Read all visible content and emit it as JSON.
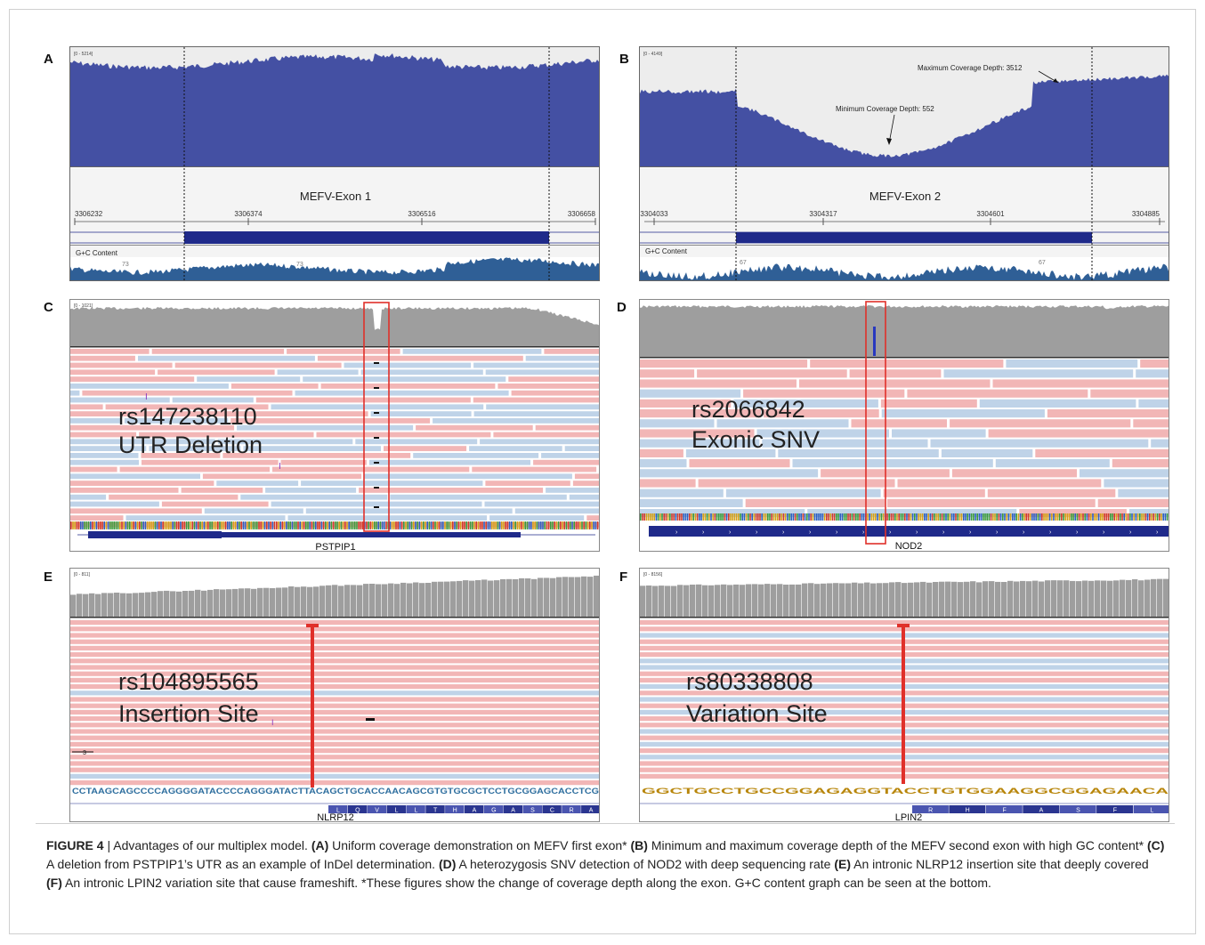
{
  "panels": {
    "A": {
      "letter": "A",
      "scale": "[0 - 5214]",
      "exon": "MEFV-Exon 1",
      "ticks": [
        "3306232",
        "3306374",
        "3306516",
        "3306658"
      ],
      "gc_label": "G+C Content",
      "gc_values": [
        "73",
        "73"
      ]
    },
    "B": {
      "letter": "B",
      "scale": "[0 - 4149]",
      "exon": "MEFV-Exon 2",
      "ticks": [
        "3304033",
        "3304317",
        "3304601",
        "3304885"
      ],
      "gc_label": "G+C Content",
      "gc_values": [
        "67",
        "67"
      ],
      "max_annotation": "Maximum Coverage Depth: 3512",
      "min_annotation": "Minimum Coverage Depth: 552"
    },
    "C": {
      "letter": "C",
      "scale": "[0 - 1021]",
      "variant": "rs147238110",
      "variant_type": "UTR Deletion",
      "gene": "PSTPIP1"
    },
    "D": {
      "letter": "D",
      "variant": "rs2066842",
      "variant_type": "Exonic SNV",
      "gene": "NOD2"
    },
    "E": {
      "letter": "E",
      "scale": "[0 - 811]",
      "variant": "rs104895565",
      "variant_type": "Insertion Site",
      "gene": "NLRP12",
      "sequence": "CCTAAGCAGCCCCAGGGGATACCCCAGGGATACTTACAGCTGCACCAACAGCGTGTGCGCTCCTGCGGAGCACCTCG",
      "amino_acids": [
        "L",
        "Q",
        "V",
        "L",
        "L",
        "T",
        "H",
        "A",
        "G",
        "A",
        "S",
        "C",
        "R",
        "A"
      ],
      "marker": "3"
    },
    "F": {
      "letter": "F",
      "scale": "[0 - 8156]",
      "variant": "rs80338808",
      "variant_type": "Variation Site",
      "gene": "LPIN2",
      "sequence": "GGCTGCCTGCCGGAGAGGTACCTGTGGAAGGCGGAGAACA",
      "amino_acids": [
        "R",
        "H",
        "F",
        "A",
        "S",
        "F",
        "L"
      ]
    }
  },
  "caption": {
    "figure_label": "FIGURE 4",
    "separator": "|",
    "intro": "Advantages of our multiplex model.",
    "a_tag": "(A)",
    "a_text": "Uniform coverage demonstration on MEFV first exon*",
    "b_tag": "(B)",
    "b_text": "Minimum and maximum coverage depth of the MEFV second exon with high GC content*",
    "c_tag": "(C)",
    "c_text": "A deletion from PSTPIP1’s UTR as an example of InDel determination.",
    "d_tag": "(D)",
    "d_text": "A heterozygosis SNV detection of NOD2 with deep sequencing rate",
    "e_tag": "(E)",
    "e_text": "An intronic NLRP12 insertion site that deeply covered",
    "f_tag": "(F)",
    "f_text": "An intronic LPIN2 variation site that cause frameshift. *These figures show the change of coverage depth along the exon. G+C content graph can be seen at the bottom."
  },
  "colors": {
    "coverage_blue": "#4450a3",
    "coverage_gray": "#9e9e9e",
    "read_pink": "#f2b6b6",
    "read_blue": "#bfd3e8",
    "highlight_red": "#e0302a",
    "gene_navy": "#1f2a8a",
    "gc_blue": "#2f5f96"
  }
}
